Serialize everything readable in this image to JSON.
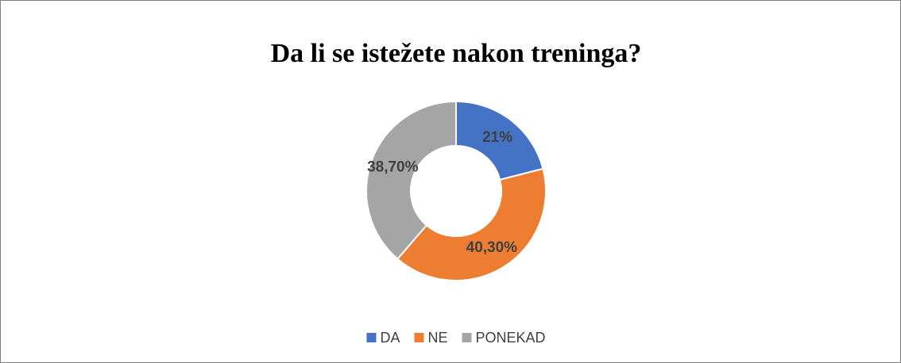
{
  "chart_data": {
    "type": "donut",
    "title": "Da li se istežete nakon treninga?",
    "categories": [
      "DA",
      "NE",
      "PONEKAD"
    ],
    "values": [
      21,
      40.3,
      38.7
    ],
    "value_labels": [
      "21%",
      "40,30%",
      "38,70%"
    ],
    "colors": [
      "#4472c4",
      "#ed7d31",
      "#a5a5a5"
    ],
    "legend": "bottom"
  }
}
